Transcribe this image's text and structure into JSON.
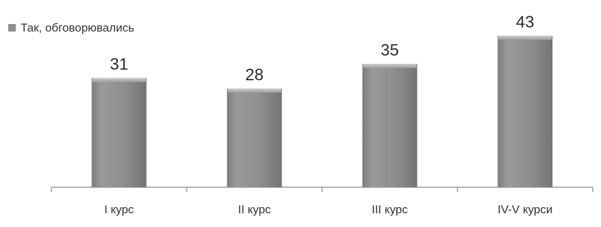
{
  "chart_data": {
    "type": "bar",
    "categories": [
      "I курс",
      "II курс",
      "III курс",
      "IV-V курси"
    ],
    "series": [
      {
        "name": "Так, обговорювались",
        "values": [
          31,
          28,
          35,
          43
        ]
      }
    ],
    "legend_position": "top-left",
    "grid": false,
    "data_labels": true,
    "bar_color": "#8f8f8f",
    "axis_color": "#9a9a9a"
  }
}
